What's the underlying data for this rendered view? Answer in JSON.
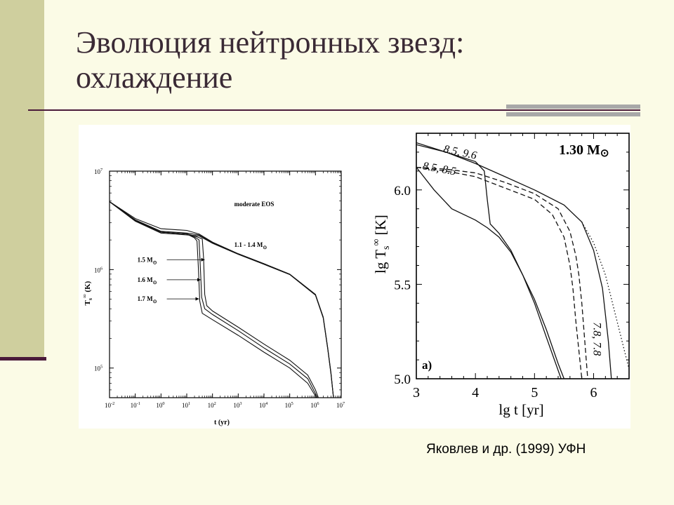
{
  "slide": {
    "title_line1": "Эволюция нейтронных звезд:",
    "title_line2": "охлаждение",
    "caption": "Яковлев и др. (1999) УФН"
  },
  "colors": {
    "background": "#fbfbe6",
    "side_bar": "#cfcf9e",
    "accent_line": "#4a1a3a",
    "rule_bar": "#a8a8a8"
  },
  "chart_data": [
    {
      "type": "line",
      "xscale": "log",
      "yscale": "log",
      "xlabel": "t (yr)",
      "ylabel": "T",
      "ylabel_sup": "∞",
      "ylabel_sub": "s",
      "ylabel_unit": "(K)",
      "xlim": [
        0.01,
        10000000
      ],
      "ylim": [
        50000,
        10000000
      ],
      "x_ticks": [
        {
          "v": 0.01,
          "base": "10",
          "exp": "-2"
        },
        {
          "v": 0.1,
          "base": "10",
          "exp": "-1"
        },
        {
          "v": 1,
          "base": "10",
          "exp": "0"
        },
        {
          "v": 10,
          "base": "10",
          "exp": "1"
        },
        {
          "v": 100,
          "base": "10",
          "exp": "2"
        },
        {
          "v": 1000,
          "base": "10",
          "exp": "3"
        },
        {
          "v": 10000,
          "base": "10",
          "exp": "4"
        },
        {
          "v": 100000,
          "base": "10",
          "exp": "5"
        },
        {
          "v": 1000000,
          "base": "10",
          "exp": "6"
        },
        {
          "v": 10000000,
          "base": "10",
          "exp": "7"
        }
      ],
      "y_ticks": [
        {
          "v": 10000000,
          "base": "10",
          "exp": "7"
        },
        {
          "v": 1000000,
          "base": "10",
          "exp": "6"
        },
        {
          "v": 100000,
          "base": "10",
          "exp": "5"
        }
      ],
      "annotations": [
        {
          "text": "moderate EOS",
          "x": 700,
          "y": 4400000
        },
        {
          "text": "1.1 - 1.4 M",
          "sub": "⊙",
          "x": 700,
          "y": 1700000
        },
        {
          "text": "1.5 M",
          "sub": "⊙",
          "x": 0.12,
          "y": 1200000,
          "arrow_x": 50
        },
        {
          "text": "1.6 M",
          "sub": "⊙",
          "x": 0.12,
          "y": 750000,
          "arrow_x": 35
        },
        {
          "text": "1.7 M",
          "sub": "⊙",
          "x": 0.12,
          "y": 480000,
          "arrow_x": 30
        }
      ],
      "series": [
        {
          "x": [
            0.01,
            0.1,
            1,
            10,
            30,
            100,
            1000,
            10000,
            100000,
            1000000,
            2000000,
            3000000,
            4000000,
            5000000
          ],
          "y": [
            4900000,
            3300000,
            2600000,
            2500000,
            2300000,
            1900000,
            1450000,
            1150000,
            900000,
            560000,
            330000,
            160000,
            90000,
            50000
          ]
        },
        {
          "x": [
            0.01,
            0.1,
            1,
            10,
            30,
            100,
            1000,
            10000,
            100000,
            1000000,
            2000000,
            3000000,
            4000000,
            5000000
          ],
          "y": [
            4900000,
            3200000,
            2450000,
            2350000,
            2250000,
            1870000,
            1440000,
            1140000,
            895000,
            555000,
            325000,
            158000,
            88000,
            50000
          ]
        },
        {
          "x": [
            0.01,
            0.1,
            1,
            10,
            30,
            100,
            1000,
            10000,
            100000,
            1000000,
            2000000,
            3000000,
            4000000,
            5000000
          ],
          "y": [
            4900000,
            3100000,
            2350000,
            2250000,
            2200000,
            1850000,
            1430000,
            1130000,
            890000,
            550000,
            322000,
            156000,
            87000,
            50000
          ]
        },
        {
          "x": [
            0.01,
            0.1,
            1,
            10,
            20,
            40,
            45,
            50,
            60,
            100,
            1000,
            10000,
            100000,
            500000,
            1000000,
            1300000
          ],
          "y": [
            4900000,
            3150000,
            2400000,
            2300000,
            2200000,
            2050000,
            1300000,
            560000,
            430000,
            380000,
            260000,
            175000,
            120000,
            85000,
            60000,
            50000
          ]
        },
        {
          "x": [
            0.01,
            0.1,
            1,
            10,
            20,
            30,
            33,
            38,
            50,
            100,
            1000,
            10000,
            100000,
            500000,
            1000000,
            1200000
          ],
          "y": [
            4900000,
            3150000,
            2400000,
            2300000,
            2150000,
            2000000,
            1200000,
            520000,
            400000,
            350000,
            240000,
            160000,
            110000,
            78000,
            55000,
            50000
          ]
        },
        {
          "x": [
            0.01,
            0.1,
            1,
            10,
            20,
            25,
            28,
            32,
            40,
            100,
            1000,
            10000,
            100000,
            500000,
            1000000,
            1100000
          ],
          "y": [
            4900000,
            3150000,
            2400000,
            2300000,
            2100000,
            1950000,
            1100000,
            480000,
            360000,
            310000,
            215000,
            145000,
            100000,
            70000,
            52000,
            50000
          ]
        }
      ]
    },
    {
      "type": "line",
      "xlabel": "lg t [yr]",
      "ylabel": "lg T",
      "ylabel_sup": "∞",
      "ylabel_sub": "s",
      "ylabel_unit": "[K]",
      "xlim": [
        3,
        6.6
      ],
      "ylim": [
        5.0,
        6.3
      ],
      "x_ticks": [
        3,
        4,
        5,
        6
      ],
      "y_ticks": [
        5.0,
        5.5,
        6.0
      ],
      "y_tick_labels": [
        "5.0",
        "5.5",
        "6.0"
      ],
      "panel_title": "1.30 M",
      "panel_title_sub": "⊙",
      "panel_label": "a)",
      "annotations": [
        {
          "text": "8.5, 9.6",
          "x": 3.45,
          "y": 6.2
        },
        {
          "text": "8.5, 8.5",
          "x": 3.1,
          "y": 6.11
        },
        {
          "text": "7.8, 7.8",
          "x": 6.0,
          "y": 5.3
        }
      ],
      "series": [
        {
          "style": "solid",
          "x": [
            3.0,
            3.5,
            4.0,
            4.5,
            5.0,
            5.5,
            5.8,
            6.0,
            6.15,
            6.25,
            6.3
          ],
          "y": [
            6.25,
            6.2,
            6.14,
            6.07,
            6.0,
            5.92,
            5.83,
            5.68,
            5.48,
            5.2,
            5.0
          ]
        },
        {
          "style": "dotted",
          "x": [
            5.8,
            6.0,
            6.2,
            6.4,
            6.6
          ],
          "y": [
            5.83,
            5.72,
            5.55,
            5.3,
            5.05
          ]
        },
        {
          "style": "dashed",
          "x": [
            3.0,
            3.5,
            4.0,
            4.5,
            5.0,
            5.4,
            5.6,
            5.7,
            5.75,
            5.8,
            5.85,
            5.9
          ],
          "y": [
            6.12,
            6.11,
            6.09,
            6.04,
            5.98,
            5.9,
            5.78,
            5.65,
            5.55,
            5.4,
            5.2,
            5.0
          ]
        },
        {
          "style": "dashed",
          "x": [
            3.0,
            3.5,
            4.0,
            4.5,
            5.0,
            5.3,
            5.5,
            5.6,
            5.65,
            5.7,
            5.75,
            5.8
          ],
          "y": [
            6.12,
            6.1,
            6.07,
            6.01,
            5.95,
            5.87,
            5.75,
            5.6,
            5.48,
            5.3,
            5.15,
            5.0
          ]
        },
        {
          "style": "solid",
          "x": [
            3.0,
            3.3,
            3.6,
            4.0,
            4.2,
            4.4,
            4.6,
            4.8,
            5.0,
            5.2,
            5.4,
            5.5
          ],
          "y": [
            6.12,
            6.0,
            5.9,
            5.84,
            5.8,
            5.75,
            5.67,
            5.55,
            5.42,
            5.26,
            5.08,
            5.0
          ]
        },
        {
          "style": "solid",
          "x": [
            3.0,
            3.5,
            4.0,
            4.15,
            4.2,
            4.25,
            4.4,
            4.6,
            4.8,
            5.0,
            5.2,
            5.45
          ],
          "y": [
            6.24,
            6.2,
            6.15,
            6.1,
            5.95,
            5.82,
            5.77,
            5.68,
            5.55,
            5.4,
            5.22,
            5.0
          ]
        }
      ]
    }
  ]
}
